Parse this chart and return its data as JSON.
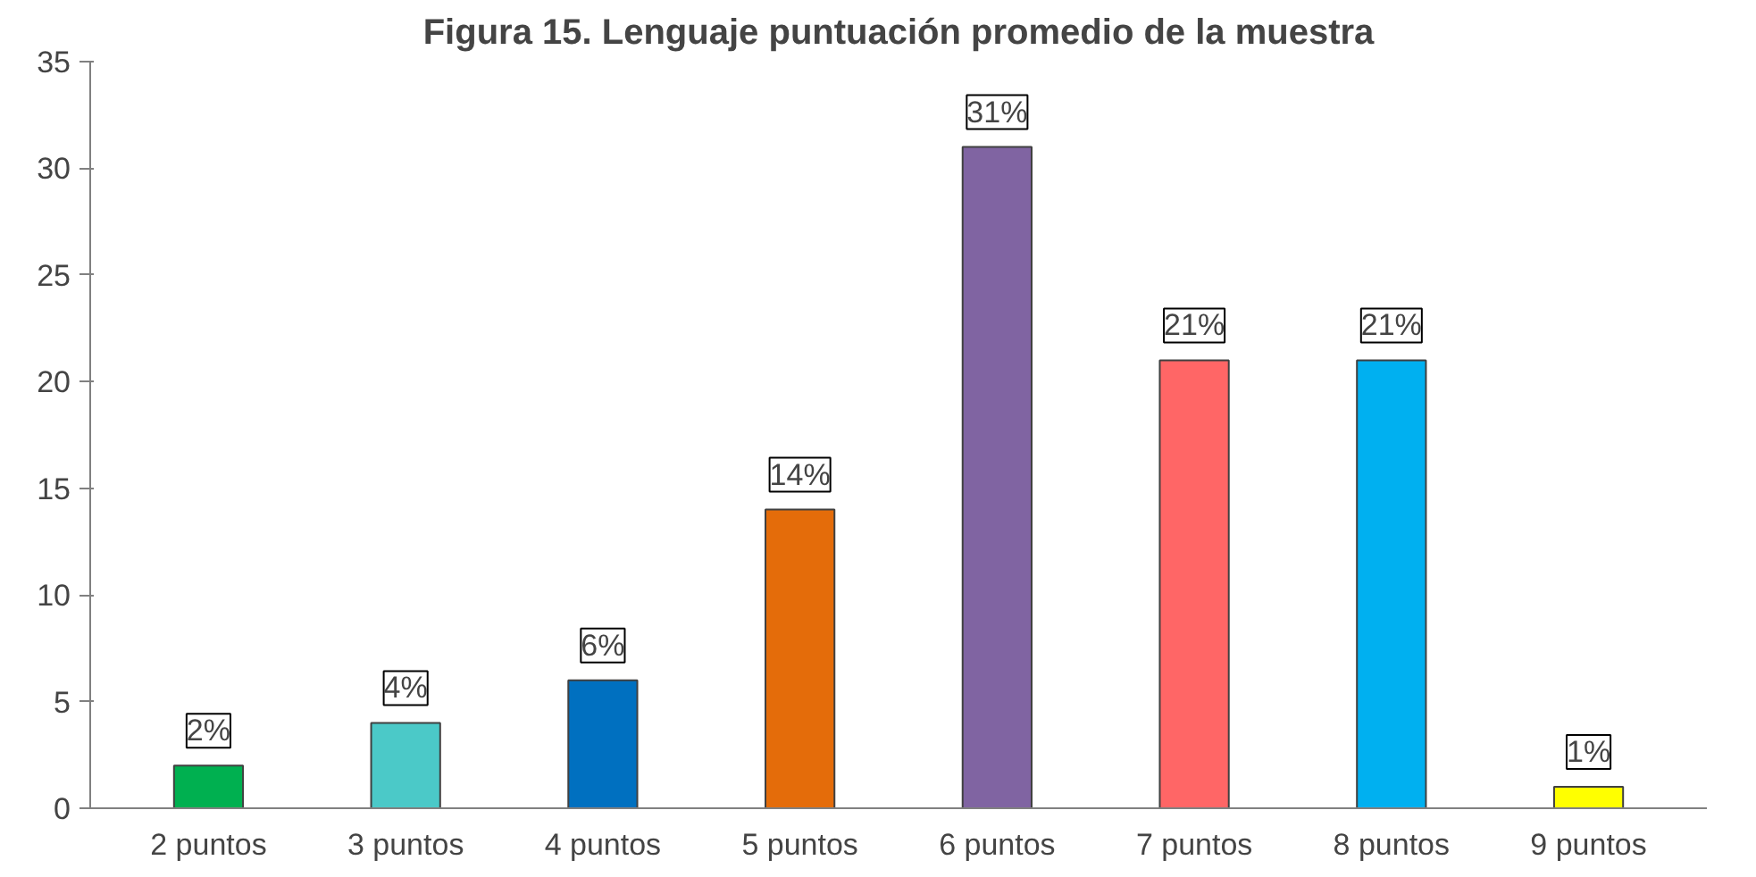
{
  "chart_data": {
    "type": "bar",
    "title": "Figura 15. Lenguaje puntuación promedio de la muestra",
    "categories": [
      "2 puntos",
      "3 puntos",
      "4 puntos",
      "5 puntos",
      "6 puntos",
      "7 puntos",
      "8 puntos",
      "9 puntos"
    ],
    "values": [
      2,
      4,
      6,
      14,
      31,
      21,
      21,
      1
    ],
    "value_labels": [
      "2%",
      "4%",
      "6%",
      "14%",
      "31%",
      "21%",
      "21%",
      "1%"
    ],
    "colors": [
      "#00b050",
      "#4bc9c8",
      "#0070c0",
      "#e46c0a",
      "#8064a2",
      "#ff6666",
      "#00b0f0",
      "#ffff00"
    ],
    "ylim": [
      0,
      35
    ],
    "yticks": [
      0,
      5,
      10,
      15,
      20,
      25,
      30,
      35
    ],
    "grid": false
  }
}
